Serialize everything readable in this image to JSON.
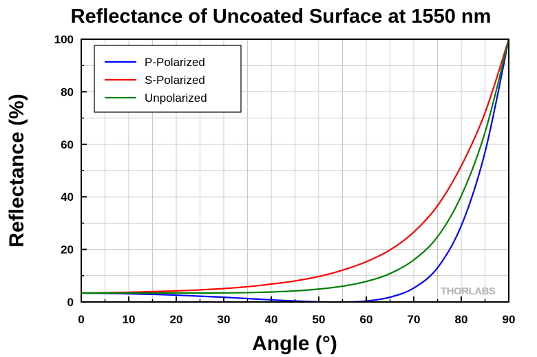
{
  "chart_data": {
    "type": "line",
    "title": "Reflectance of Uncoated Surface at 1550 nm",
    "xlabel": "Angle (°)",
    "ylabel": "Reflectance (%)",
    "xlim": [
      0,
      90
    ],
    "ylim": [
      0,
      100
    ],
    "x_ticks": [
      "0",
      "10",
      "20",
      "30",
      "40",
      "50",
      "60",
      "70",
      "80",
      "90"
    ],
    "y_ticks": [
      "0",
      "20",
      "40",
      "60",
      "80",
      "100"
    ],
    "grid": true,
    "legend_position": "top-left",
    "x": [
      0,
      5,
      10,
      15,
      20,
      25,
      30,
      35,
      40,
      45,
      50,
      55,
      60,
      65,
      70,
      75,
      80,
      85,
      90
    ],
    "series": [
      {
        "name": "P-Polarized",
        "color": "#0000ff",
        "values": [
          3.4,
          3.3,
          3.1,
          2.9,
          2.6,
          2.2,
          1.8,
          1.3,
          0.8,
          0.35,
          0.05,
          0.0,
          0.35,
          1.8,
          5.3,
          13.0,
          29.0,
          57.0,
          100
        ]
      },
      {
        "name": "S-Polarized",
        "color": "#ff0000",
        "values": [
          3.4,
          3.5,
          3.7,
          3.95,
          4.2,
          4.6,
          5.1,
          5.8,
          6.8,
          8.0,
          9.7,
          12.1,
          15.3,
          19.8,
          26.6,
          36.6,
          51.8,
          72.0,
          100
        ]
      },
      {
        "name": "Unpolarized",
        "color": "#008000",
        "values": [
          3.4,
          3.4,
          3.4,
          3.4,
          3.4,
          3.4,
          3.45,
          3.55,
          3.8,
          4.2,
          4.9,
          6.0,
          7.8,
          10.8,
          16.0,
          24.8,
          40.4,
          64.5,
          100
        ]
      }
    ],
    "watermark": "THORLABS"
  }
}
